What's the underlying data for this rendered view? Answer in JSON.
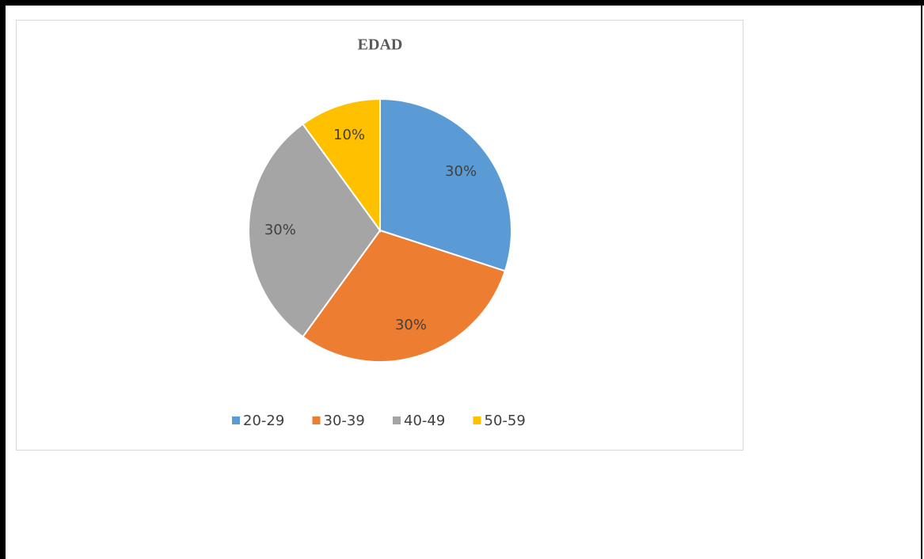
{
  "chart_data": {
    "type": "pie",
    "title": "EDAD",
    "categories": [
      "20-29",
      "30-39",
      "40-49",
      "50-59"
    ],
    "values": [
      30,
      30,
      30,
      10
    ],
    "value_labels": [
      "30%",
      "30%",
      "30%",
      "10%"
    ],
    "colors": [
      "#5b9bd5",
      "#ed7d31",
      "#a5a5a5",
      "#ffc000"
    ],
    "legend": "bottom"
  }
}
